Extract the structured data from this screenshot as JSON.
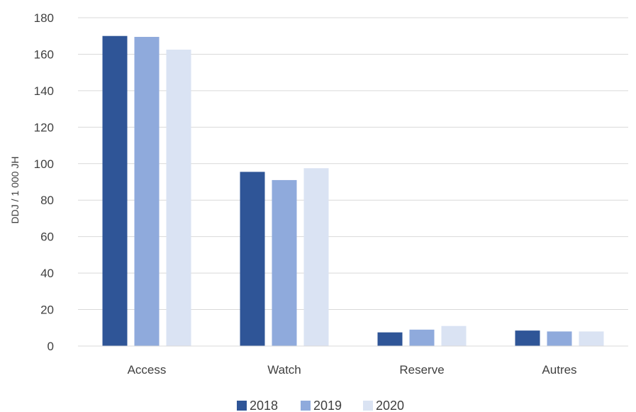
{
  "chart_data": {
    "type": "bar",
    "categories": [
      "Access",
      "Watch",
      "Reserve",
      "Autres"
    ],
    "series": [
      {
        "name": "2018",
        "color": "#2f5597",
        "values": [
          170,
          95.5,
          7.5,
          8.5
        ]
      },
      {
        "name": "2019",
        "color": "#8faadc",
        "values": [
          169.5,
          91,
          9,
          8
        ]
      },
      {
        "name": "2020",
        "color": "#dae3f3",
        "values": [
          162.5,
          97.5,
          11,
          8
        ]
      }
    ],
    "title": "",
    "xlabel": "",
    "ylabel": "DDJ / 1 000 JH",
    "ylim": [
      0,
      180
    ],
    "yticks": [
      0,
      20,
      40,
      60,
      80,
      100,
      120,
      140,
      160,
      180
    ],
    "grid": true,
    "legend": "bottom"
  }
}
